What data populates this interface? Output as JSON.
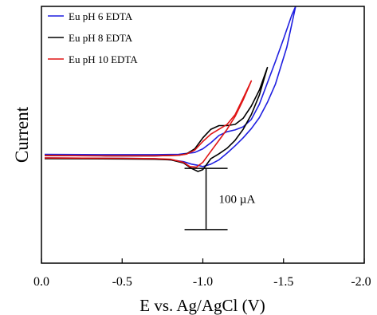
{
  "chart_data": {
    "type": "line",
    "xlabel": "E vs. Ag/AgCl (V)",
    "ylabel": "Current",
    "xlim": [
      0.0,
      -2.0
    ],
    "x_reversed": true,
    "x_ticks": [
      0.0,
      -0.5,
      -1.0,
      -1.5,
      -2.0
    ],
    "x_tick_labels": [
      "0.0",
      "-0.5",
      "-1.0",
      "-1.5",
      "-2.0"
    ],
    "y_ticks_shown": false,
    "ylim": [
      -175,
      245
    ],
    "y_units": "µA",
    "legend_position": "top-left",
    "scale_bar": {
      "label": "100 µA",
      "value": 100,
      "x": -1.02,
      "y_from": -120,
      "y_to": -20
    },
    "series": [
      {
        "name": "Eu pH 6 EDTA",
        "color": "#1f1fe0",
        "points": [
          [
            -0.02,
            3
          ],
          [
            -0.4,
            2.5
          ],
          [
            -0.7,
            2.5
          ],
          [
            -0.85,
            3
          ],
          [
            -0.95,
            6
          ],
          [
            -1.0,
            12
          ],
          [
            -1.05,
            22
          ],
          [
            -1.1,
            34
          ],
          [
            -1.15,
            40
          ],
          [
            -1.2,
            43
          ],
          [
            -1.25,
            48
          ],
          [
            -1.3,
            60
          ],
          [
            -1.35,
            85
          ],
          [
            -1.4,
            120
          ],
          [
            -1.45,
            155
          ],
          [
            -1.5,
            192
          ],
          [
            -1.55,
            230
          ],
          [
            -1.575,
            245
          ],
          [
            -1.575,
            245
          ],
          [
            -1.52,
            178
          ],
          [
            -1.45,
            118
          ],
          [
            -1.4,
            88
          ],
          [
            -1.35,
            63
          ],
          [
            -1.3,
            45
          ],
          [
            -1.25,
            30
          ],
          [
            -1.2,
            17
          ],
          [
            -1.15,
            5
          ],
          [
            -1.1,
            -6
          ],
          [
            -1.05,
            -13
          ],
          [
            -1.0,
            -17
          ],
          [
            -0.97,
            -15
          ],
          [
            -0.93,
            -13
          ],
          [
            -0.88,
            -9
          ],
          [
            -0.8,
            -6
          ],
          [
            -0.7,
            -4
          ],
          [
            -0.5,
            -3.5
          ],
          [
            -0.02,
            -3
          ]
        ]
      },
      {
        "name": "Eu pH 8 EDTA",
        "color": "#000000",
        "points": [
          [
            -0.02,
            1
          ],
          [
            -0.4,
            0.5
          ],
          [
            -0.7,
            0.5
          ],
          [
            -0.85,
            1.5
          ],
          [
            -0.9,
            4
          ],
          [
            -0.95,
            12
          ],
          [
            -1.0,
            30
          ],
          [
            -1.05,
            44
          ],
          [
            -1.1,
            50
          ],
          [
            -1.15,
            50
          ],
          [
            -1.2,
            52
          ],
          [
            -1.25,
            62
          ],
          [
            -1.3,
            82
          ],
          [
            -1.35,
            108
          ],
          [
            -1.4,
            145
          ],
          [
            -1.4,
            145
          ],
          [
            -1.35,
            100
          ],
          [
            -1.3,
            68
          ],
          [
            -1.25,
            44
          ],
          [
            -1.2,
            26
          ],
          [
            -1.15,
            13
          ],
          [
            -1.1,
            4
          ],
          [
            -1.05,
            -4
          ],
          [
            -1.0,
            -22
          ],
          [
            -0.97,
            -25
          ],
          [
            -0.93,
            -20
          ],
          [
            -0.88,
            -11
          ],
          [
            -0.8,
            -6
          ],
          [
            -0.7,
            -5
          ],
          [
            -0.5,
            -4.5
          ],
          [
            -0.02,
            -4
          ]
        ]
      },
      {
        "name": "Eu pH 10 EDTA",
        "color": "#e01515",
        "points": [
          [
            -0.02,
            1
          ],
          [
            -0.4,
            0.5
          ],
          [
            -0.7,
            0.5
          ],
          [
            -0.85,
            1.5
          ],
          [
            -0.9,
            3.5
          ],
          [
            -0.95,
            10
          ],
          [
            -1.0,
            24
          ],
          [
            -1.05,
            36
          ],
          [
            -1.1,
            44
          ],
          [
            -1.15,
            52
          ],
          [
            -1.2,
            68
          ],
          [
            -1.25,
            95
          ],
          [
            -1.3,
            123
          ],
          [
            -1.3,
            123
          ],
          [
            -1.25,
            92
          ],
          [
            -1.2,
            65
          ],
          [
            -1.15,
            44
          ],
          [
            -1.1,
            26
          ],
          [
            -1.05,
            8
          ],
          [
            -1.0,
            -10
          ],
          [
            -0.96,
            -18
          ],
          [
            -0.92,
            -17
          ],
          [
            -0.88,
            -10
          ],
          [
            -0.8,
            -5
          ],
          [
            -0.7,
            -4
          ],
          [
            -0.5,
            -3.5
          ],
          [
            -0.02,
            -3
          ]
        ]
      }
    ]
  }
}
